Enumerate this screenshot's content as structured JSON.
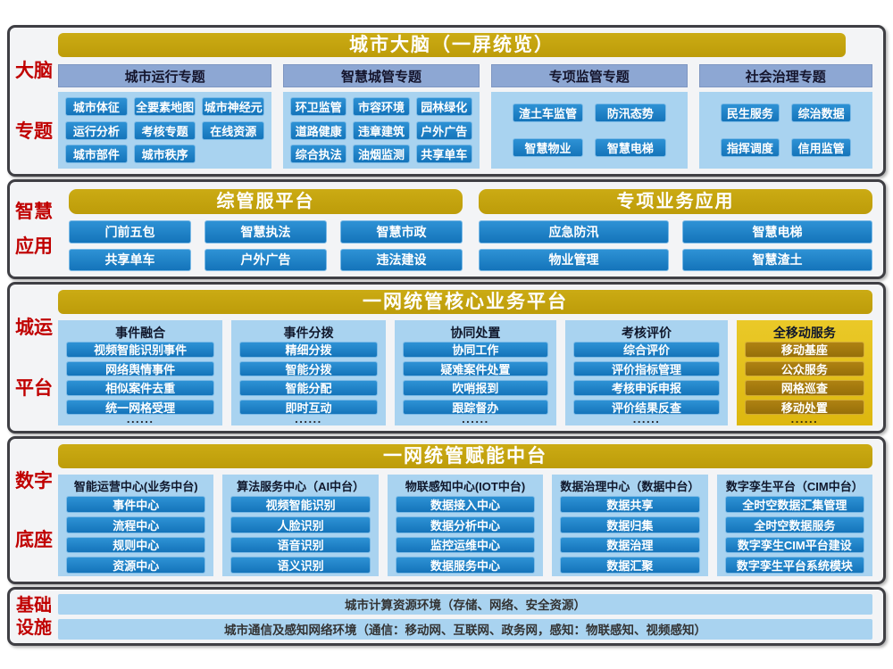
{
  "colors": {
    "gold_bar": "#c3a20d",
    "gold_panel": "#e5bf1b",
    "gold_button": "#a6790e",
    "blue_button": "#1a7ec6",
    "light_blue_panel": "#a9d3f0",
    "header_blue": "#8da7d3",
    "side_label_red": "#c00000"
  },
  "brain": {
    "label1": "大脑",
    "label2": "专题",
    "title": "城市大脑（一屏统览）",
    "col1": {
      "header": "城市运行专题",
      "items": [
        "城市体征",
        "全要素地图",
        "城市神经元",
        "运行分析",
        "考核专题",
        "在线资源",
        "城市部件",
        "城市秩序"
      ]
    },
    "col2": {
      "header": "智慧城管专题",
      "items": [
        "环卫监管",
        "市容环境",
        "园林绿化",
        "道路健康",
        "违章建筑",
        "户外广告",
        "综合执法",
        "油烟监测",
        "共享单车"
      ]
    },
    "col3": {
      "header": "专项监管专题",
      "items": [
        "渣土车监管",
        "防汛态势",
        "智慧物业",
        "智慧电梯"
      ]
    },
    "col4": {
      "header": "社会治理专题",
      "items": [
        "民生服务",
        "综治数据",
        "指挥调度",
        "信用监管"
      ]
    }
  },
  "apps": {
    "label1": "智慧",
    "label2": "应用",
    "left": {
      "title": "综管服平台",
      "items": [
        "门前五包",
        "智慧执法",
        "智慧市政",
        "共享单车",
        "户外广告",
        "违法建设"
      ]
    },
    "right": {
      "title": "专项业务应用",
      "items": [
        "应急防汛",
        "智慧电梯",
        "物业管理",
        "智慧渣土"
      ]
    }
  },
  "core": {
    "label1": "城运",
    "label2": "平台",
    "title": "一网统管核心业务平台",
    "dots": "......",
    "col1": {
      "header": "事件融合",
      "items": [
        "视频智能识别事件",
        "网络舆情事件",
        "相似案件去重",
        "统一网格受理"
      ]
    },
    "col2": {
      "header": "事件分拨",
      "items": [
        "精细分拨",
        "智能分拨",
        "智能分配",
        "即时互动"
      ]
    },
    "col3": {
      "header": "协同处置",
      "items": [
        "协同工作",
        "疑难案件处置",
        "吹哨报到",
        "跟踪督办"
      ]
    },
    "col4": {
      "header": "考核评价",
      "items": [
        "综合评价",
        "评价指标管理",
        "考核申诉申报",
        "评价结果反查"
      ]
    },
    "col5": {
      "header": "全移动服务",
      "items": [
        "移动基座",
        "公众服务",
        "网格巡查",
        "移动处置"
      ]
    }
  },
  "middle": {
    "label1": "数字",
    "label2": "底座",
    "title": "一网统管赋能中台",
    "col1": {
      "header": "智能运营中心(业务中台)",
      "items": [
        "事件中心",
        "流程中心",
        "规则中心",
        "资源中心"
      ]
    },
    "col2": {
      "header": "算法服务中心（AI中台）",
      "items": [
        "视频智能识别",
        "人脸识别",
        "语音识别",
        "语义识别"
      ]
    },
    "col3": {
      "header": "物联感知中心(IOT中台)",
      "items": [
        "数据接入中心",
        "数据分析中心",
        "监控运维中心",
        "数据服务中心"
      ]
    },
    "col4": {
      "header": "数据治理中心（数据中台）",
      "items": [
        "数据共享",
        "数据归集",
        "数据治理",
        "数据汇聚"
      ]
    },
    "col5": {
      "header": "数字孪生平台（CIM中台）",
      "items": [
        "全时空数据汇集管理",
        "全时空数据服务",
        "数字孪生CIM平台建设",
        "数字孪生平台系统模块"
      ]
    }
  },
  "infra": {
    "label1": "基础",
    "label2": "设施",
    "bar1": "城市计算资源环境（存储、网络、安全资源）",
    "bar2": "城市通信及感知网络环境（通信：移动网、互联网、政务网，感知：物联感知、视频感知）"
  }
}
